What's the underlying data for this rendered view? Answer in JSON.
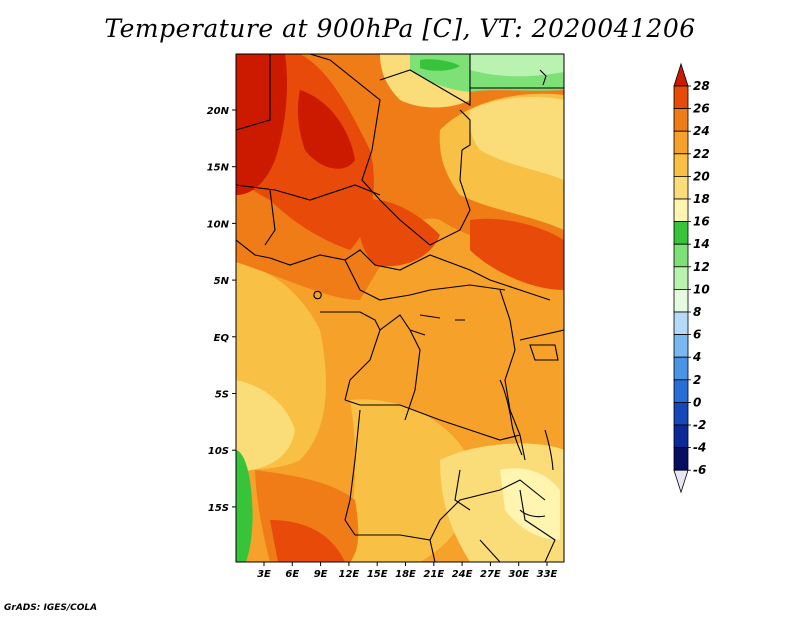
{
  "title": "Temperature at 900hPa [C], VT: 2020041206",
  "footer": "GrADS: IGES/COLA",
  "map": {
    "x_axis_labels": [
      "3E",
      "6E",
      "9E",
      "12E",
      "15E",
      "18E",
      "21E",
      "24E",
      "27E",
      "30E",
      "33E"
    ],
    "y_axis_labels": [
      "20N",
      "15N",
      "10N",
      "5N",
      "EQ",
      "5S",
      "10S",
      "15S"
    ]
  },
  "colorbar": {
    "levels": [
      "28",
      "26",
      "24",
      "22",
      "20",
      "18",
      "16",
      "14",
      "12",
      "10",
      "8",
      "6",
      "4",
      "2",
      "0",
      "-2",
      "-4",
      "-6"
    ],
    "colors": [
      "#cc1a00",
      "#e84a0a",
      "#f07c18",
      "#f5a12a",
      "#f8c045",
      "#fadd78",
      "#fff4b0",
      "#38c43a",
      "#7ee178",
      "#baf3b0",
      "#e4fbe0",
      "#b4daf8",
      "#7ab8f0",
      "#4a94e6",
      "#286ed6",
      "#1548b8",
      "#0c2a96",
      "#060e60",
      "#e6e6f5"
    ]
  },
  "chart_data": {
    "type": "heatmap",
    "title": "Temperature at 900hPa [C], VT: 2020041206",
    "x_ticks": [
      "3E",
      "6E",
      "9E",
      "12E",
      "15E",
      "18E",
      "21E",
      "24E",
      "27E",
      "30E",
      "33E"
    ],
    "y_ticks": [
      "20N",
      "15N",
      "10N",
      "5N",
      "EQ",
      "5S",
      "10S",
      "15S"
    ],
    "color_scale_values": [
      28,
      26,
      24,
      22,
      20,
      18,
      16,
      14,
      12,
      10,
      8,
      6,
      4,
      2,
      0,
      -2,
      -4,
      -6
    ],
    "units": "C"
  }
}
